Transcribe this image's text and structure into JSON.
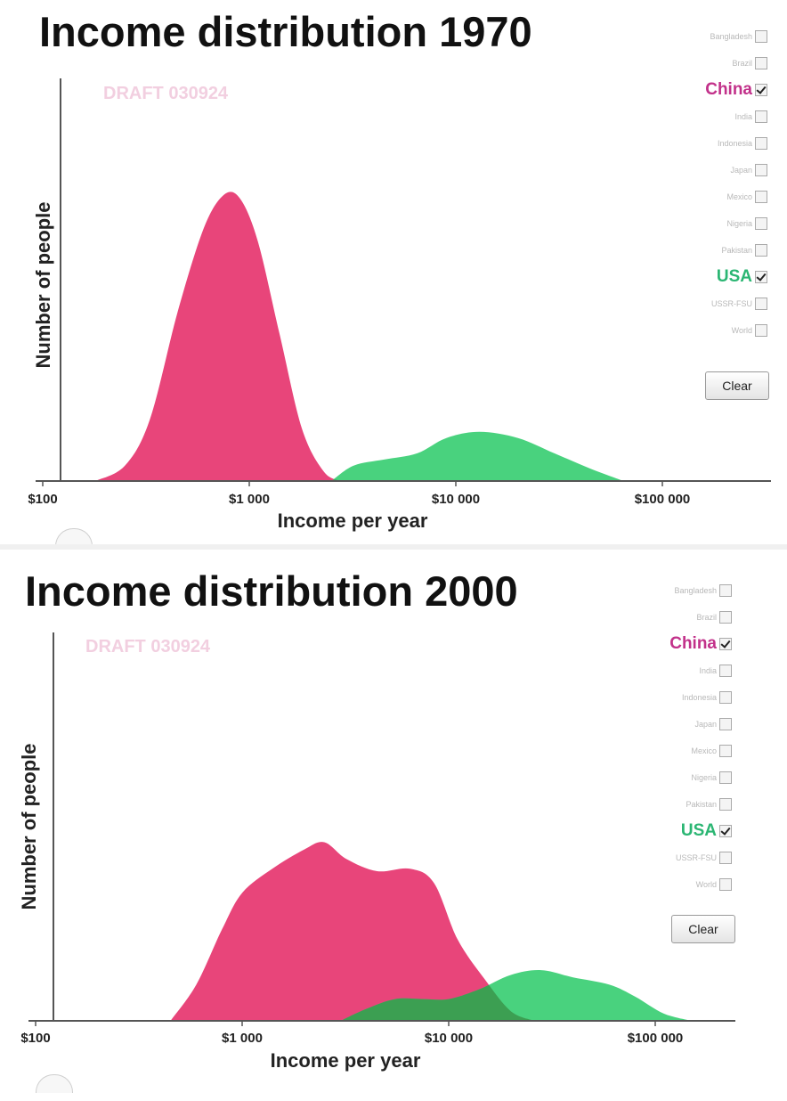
{
  "colors": {
    "china": "#e8457a",
    "usa": "#3fd077",
    "overlap": "#3b9a4e",
    "axis": "#555555"
  },
  "chart_data": [
    {
      "type": "area",
      "title": "Income distribution 1970",
      "watermark": "DRAFT 030924",
      "xlabel": "Income per year",
      "ylabel": "Number of people",
      "x_scale": "log",
      "xlim": [
        100,
        200000
      ],
      "ylim": [
        0,
        100
      ],
      "x_ticks": [
        {
          "value": 100,
          "label": "$100"
        },
        {
          "value": 1000,
          "label": "$1 000"
        },
        {
          "value": 10000,
          "label": "$10 000"
        },
        {
          "value": 100000,
          "label": "$100 000"
        }
      ],
      "series": [
        {
          "name": "China",
          "color": "#e8457a",
          "points": [
            [
              180,
              0
            ],
            [
              250,
              5
            ],
            [
              330,
              20
            ],
            [
              450,
              55
            ],
            [
              600,
              82
            ],
            [
              750,
              93
            ],
            [
              900,
              92
            ],
            [
              1100,
              78
            ],
            [
              1400,
              48
            ],
            [
              1800,
              17
            ],
            [
              2300,
              3
            ],
            [
              2800,
              0
            ]
          ]
        },
        {
          "name": "USA",
          "color": "#3fd077",
          "points": [
            [
              2500,
              0
            ],
            [
              3200,
              5
            ],
            [
              4500,
              7
            ],
            [
              6500,
              9
            ],
            [
              9000,
              14
            ],
            [
              13000,
              16
            ],
            [
              20000,
              14
            ],
            [
              30000,
              9
            ],
            [
              45000,
              4
            ],
            [
              65000,
              0
            ]
          ]
        }
      ],
      "legend": {
        "items": [
          {
            "label": "Bangladesh",
            "checked": false
          },
          {
            "label": "Brazil",
            "checked": false
          },
          {
            "label": "China",
            "checked": true,
            "color": "#c2318a"
          },
          {
            "label": "India",
            "checked": false
          },
          {
            "label": "Indonesia",
            "checked": false
          },
          {
            "label": "Japan",
            "checked": false
          },
          {
            "label": "Mexico",
            "checked": false
          },
          {
            "label": "Nigeria",
            "checked": false
          },
          {
            "label": "Pakistan",
            "checked": false
          },
          {
            "label": "USA",
            "checked": true,
            "color": "#2bb673"
          },
          {
            "label": "USSR-FSU",
            "checked": false
          },
          {
            "label": "World",
            "checked": false
          }
        ],
        "clear_label": "Clear"
      }
    },
    {
      "type": "area",
      "title": "Income distribution 2000",
      "watermark": "DRAFT 030924",
      "xlabel": "Income per year",
      "ylabel": "Number of people",
      "x_scale": "log",
      "xlim": [
        100,
        200000
      ],
      "ylim": [
        0,
        100
      ],
      "x_ticks": [
        {
          "value": 100,
          "label": "$100"
        },
        {
          "value": 1000,
          "label": "$1 000"
        },
        {
          "value": 10000,
          "label": "$10 000"
        },
        {
          "value": 100000,
          "label": "$100 000"
        }
      ],
      "series": [
        {
          "name": "China",
          "color": "#e8457a",
          "points": [
            [
              450,
              0
            ],
            [
              600,
              15
            ],
            [
              800,
              38
            ],
            [
              1000,
              53
            ],
            [
              1400,
              63
            ],
            [
              2000,
              71
            ],
            [
              2500,
              74
            ],
            [
              3200,
              67
            ],
            [
              4500,
              62
            ],
            [
              6500,
              63
            ],
            [
              8500,
              57
            ],
            [
              11000,
              34
            ],
            [
              15000,
              17
            ],
            [
              20000,
              4
            ],
            [
              26000,
              0
            ]
          ]
        },
        {
          "name": "USA",
          "color": "#3fd077",
          "points": [
            [
              3000,
              0
            ],
            [
              4000,
              5
            ],
            [
              5500,
              9
            ],
            [
              7500,
              9
            ],
            [
              10000,
              9
            ],
            [
              14000,
              13
            ],
            [
              20000,
              19
            ],
            [
              28000,
              21
            ],
            [
              40000,
              18
            ],
            [
              60000,
              15
            ],
            [
              80000,
              10
            ],
            [
              110000,
              3
            ],
            [
              150000,
              0
            ]
          ]
        }
      ],
      "legend": {
        "items": [
          {
            "label": "Bangladesh",
            "checked": false
          },
          {
            "label": "Brazil",
            "checked": false
          },
          {
            "label": "China",
            "checked": true,
            "color": "#c2318a"
          },
          {
            "label": "India",
            "checked": false
          },
          {
            "label": "Indonesia",
            "checked": false
          },
          {
            "label": "Japan",
            "checked": false
          },
          {
            "label": "Mexico",
            "checked": false
          },
          {
            "label": "Nigeria",
            "checked": false
          },
          {
            "label": "Pakistan",
            "checked": false
          },
          {
            "label": "USA",
            "checked": true,
            "color": "#2bb673"
          },
          {
            "label": "USSR-FSU",
            "checked": false
          },
          {
            "label": "World",
            "checked": false
          }
        ],
        "clear_label": "Clear"
      }
    }
  ]
}
